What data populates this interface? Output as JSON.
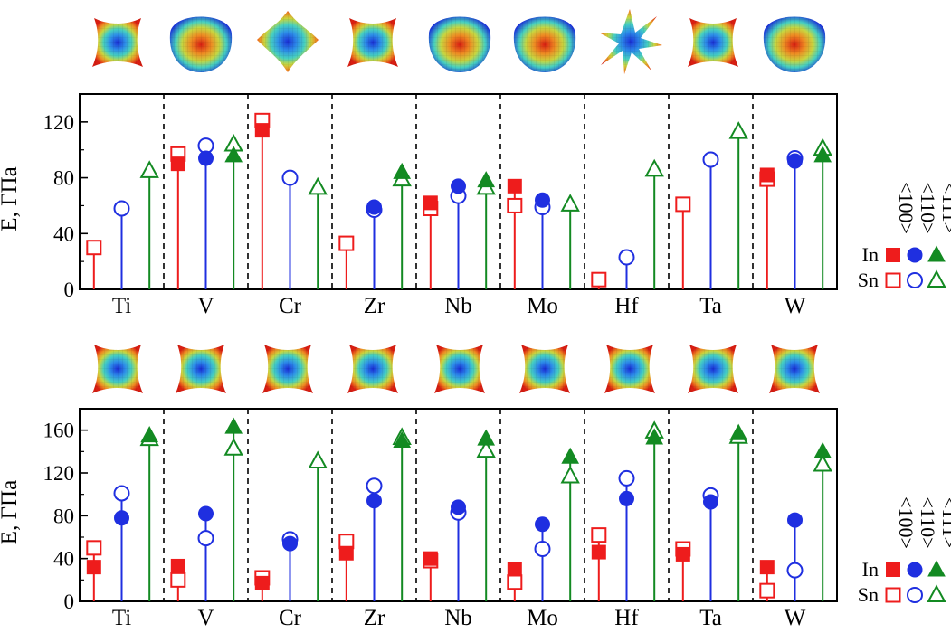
{
  "colors": {
    "In_Sn_100": "#ee1c1c",
    "dir_110": "#1f2fe0",
    "dir_111": "#138a22"
  },
  "surface_icons": [
    "surface-icon",
    "surface-icon"
  ],
  "chart_data": [
    {
      "type": "lollipop",
      "ylabel": "E, ГПа",
      "ylim": [
        0,
        140
      ],
      "yticks": [
        0,
        40,
        80,
        120
      ],
      "categories": [
        "Ti",
        "V",
        "Cr",
        "Zr",
        "Nb",
        "Mo",
        "Hf",
        "Ta",
        "W"
      ],
      "legend": {
        "directions": [
          "<100>",
          "<110>",
          "<111>"
        ],
        "rows": [
          {
            "name": "In",
            "filled": true
          },
          {
            "name": "Sn",
            "filled": false
          }
        ]
      },
      "series": [
        {
          "name": "In",
          "direction": "<100>",
          "values": [
            null,
            90,
            114,
            null,
            62,
            74,
            null,
            null,
            82
          ]
        },
        {
          "name": "In",
          "direction": "<110>",
          "values": [
            null,
            94,
            null,
            59,
            74,
            64,
            null,
            null,
            92
          ]
        },
        {
          "name": "In",
          "direction": "<111>",
          "values": [
            null,
            96,
            null,
            84,
            78,
            null,
            null,
            null,
            96
          ]
        },
        {
          "name": "Sn",
          "direction": "<100>",
          "values": [
            30,
            97,
            121,
            33,
            58,
            60,
            7,
            61,
            79
          ]
        },
        {
          "name": "Sn",
          "direction": "<110>",
          "values": [
            58,
            103,
            80,
            57,
            67,
            59,
            23,
            93,
            94
          ]
        },
        {
          "name": "Sn",
          "direction": "<111>",
          "values": [
            85,
            104,
            73,
            79,
            73,
            61,
            86,
            113,
            101
          ]
        }
      ]
    },
    {
      "type": "lollipop",
      "ylabel": "E, ГПа",
      "ylim": [
        0,
        180
      ],
      "yticks": [
        0,
        40,
        80,
        120,
        160
      ],
      "categories": [
        "Ti",
        "V",
        "Cr",
        "Zr",
        "Nb",
        "Mo",
        "Hf",
        "Ta",
        "W"
      ],
      "legend": {
        "directions": [
          "<100>",
          "<110>",
          "<111>"
        ],
        "rows": [
          {
            "name": "In",
            "filled": true
          },
          {
            "name": "Sn",
            "filled": false
          }
        ]
      },
      "series": [
        {
          "name": "In",
          "direction": "<100>",
          "values": [
            32,
            33,
            17,
            45,
            40,
            30,
            46,
            44,
            32
          ]
        },
        {
          "name": "In",
          "direction": "<110>",
          "values": [
            78,
            82,
            54,
            94,
            88,
            72,
            96,
            93,
            76
          ]
        },
        {
          "name": "In",
          "direction": "<111>",
          "values": [
            155,
            163,
            null,
            150,
            152,
            135,
            153,
            157,
            140
          ]
        },
        {
          "name": "Sn",
          "direction": "<100>",
          "values": [
            50,
            20,
            22,
            56,
            38,
            18,
            62,
            49,
            10
          ]
        },
        {
          "name": "Sn",
          "direction": "<110>",
          "values": [
            101,
            59,
            58,
            108,
            83,
            49,
            115,
            99,
            29
          ]
        },
        {
          "name": "Sn",
          "direction": "<111>",
          "values": [
            152,
            143,
            131,
            153,
            141,
            117,
            159,
            154,
            128
          ]
        }
      ]
    }
  ]
}
